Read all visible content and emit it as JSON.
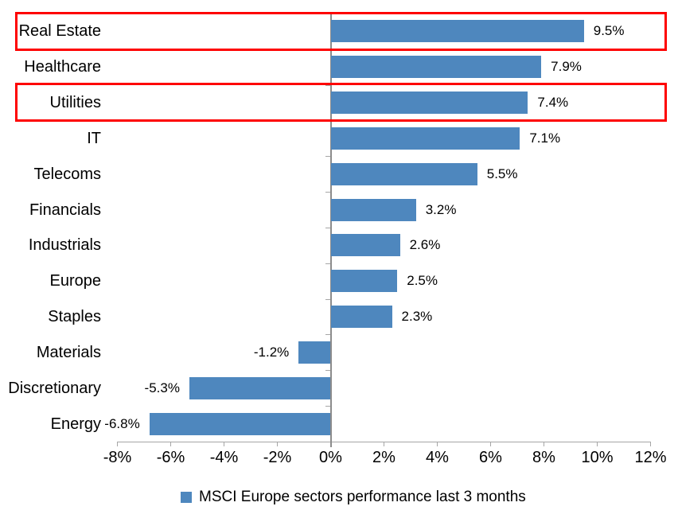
{
  "chart_data": {
    "type": "bar",
    "orientation": "horizontal",
    "title": "",
    "categories": [
      "Real Estate",
      "Healthcare",
      "Utilities",
      "IT",
      "Telecoms",
      "Financials",
      "Industrials",
      "Europe",
      "Staples",
      "Materials",
      "Discretionary",
      "Energy"
    ],
    "values": [
      9.5,
      7.9,
      7.4,
      7.1,
      5.5,
      3.2,
      2.6,
      2.5,
      2.3,
      -1.2,
      -5.3,
      -6.8
    ],
    "data_labels": [
      "9.5%",
      "7.9%",
      "7.4%",
      "7.1%",
      "5.5%",
      "3.2%",
      "2.6%",
      "2.5%",
      "2.3%",
      "-1.2%",
      "-5.3%",
      "-6.8%"
    ],
    "x_tick_values": [
      -8,
      -6,
      -4,
      -2,
      0,
      2,
      4,
      6,
      8,
      10,
      12
    ],
    "x_tick_labels": [
      "-8%",
      "-6%",
      "-4%",
      "-2%",
      "0%",
      "2%",
      "4%",
      "6%",
      "8%",
      "10%",
      "12%"
    ],
    "xlim": [
      -8,
      12
    ],
    "grid": false,
    "legend": "MSCI Europe sectors performance last 3 months",
    "legend_position": "bottom-center",
    "bar_color": "#4e87be",
    "axis_color": "#a6a6a6",
    "zero_line_color": "#8c8c8c",
    "highlight_color": "#fe0000",
    "highlighted_categories": [
      "Real Estate",
      "Utilities"
    ]
  }
}
